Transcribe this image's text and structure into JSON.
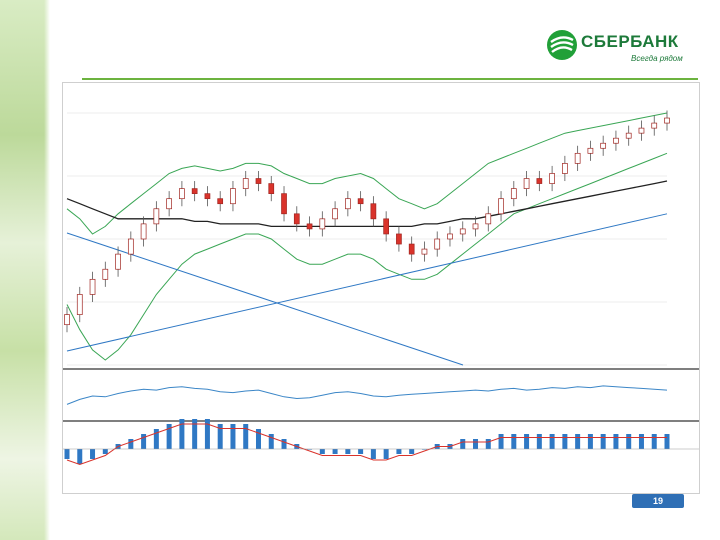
{
  "brand": {
    "name": "СБЕРБАНК",
    "slogan": "Всегда рядом"
  },
  "page_number": "19",
  "chart_data": {
    "type": "line",
    "title": "",
    "xlabel": "",
    "ylabel": "",
    "colors": {
      "bollinger": "#3aa655",
      "moving_average": "#222222",
      "trendline": "#2f78c4",
      "candle_up": "#ffffff",
      "candle_down": "#d9332b",
      "oscillator": "#3b86c7",
      "macd_hist": "#2f78c4",
      "macd_signal": "#d9332b"
    },
    "price": {
      "ylim": [
        0,
        100
      ],
      "close": [
        20,
        28,
        34,
        38,
        44,
        50,
        56,
        62,
        66,
        70,
        68,
        66,
        64,
        70,
        74,
        72,
        68,
        60,
        56,
        54,
        58,
        62,
        66,
        64,
        58,
        52,
        48,
        44,
        46,
        50,
        52,
        54,
        56,
        60,
        66,
        70,
        74,
        72,
        76,
        80,
        84,
        86,
        88,
        90,
        92,
        94,
        96,
        98
      ]
    },
    "bollinger_upper": [
      62,
      58,
      52,
      55,
      60,
      64,
      68,
      72,
      76,
      78,
      79,
      78,
      77,
      78,
      80,
      80,
      79,
      76,
      74,
      72,
      72,
      74,
      75,
      76,
      74,
      70,
      66,
      64,
      62,
      64,
      68,
      72,
      76,
      80,
      82,
      84,
      86,
      88,
      90,
      92,
      93,
      94,
      95,
      96,
      97,
      98,
      99,
      100
    ],
    "bollinger_lower": [
      24,
      14,
      6,
      2,
      6,
      12,
      20,
      28,
      34,
      40,
      44,
      46,
      48,
      50,
      52,
      52,
      50,
      46,
      42,
      40,
      40,
      42,
      44,
      44,
      42,
      38,
      36,
      34,
      34,
      36,
      40,
      44,
      48,
      52,
      56,
      60,
      62,
      64,
      66,
      68,
      70,
      72,
      74,
      76,
      78,
      80,
      82,
      84
    ],
    "moving_average": [
      66,
      64,
      62,
      60,
      58,
      58,
      58,
      58,
      58,
      58,
      57,
      57,
      56,
      56,
      56,
      56,
      55,
      55,
      55,
      55,
      55,
      55,
      55,
      55,
      55,
      55,
      55,
      55,
      56,
      56,
      57,
      58,
      58,
      59,
      60,
      61,
      62,
      63,
      64,
      65,
      66,
      67,
      68,
      69,
      70,
      71,
      72,
      73
    ],
    "oscillator": [
      30,
      42,
      50,
      48,
      56,
      62,
      66,
      64,
      70,
      72,
      68,
      66,
      60,
      58,
      62,
      64,
      56,
      48,
      44,
      46,
      52,
      58,
      60,
      56,
      50,
      48,
      52,
      54,
      56,
      58,
      60,
      62,
      64,
      62,
      66,
      68,
      64,
      66,
      70,
      68,
      72,
      70,
      74,
      72,
      70,
      68,
      66,
      64
    ],
    "macd_hist": [
      -2,
      -3,
      -2,
      -1,
      1,
      2,
      3,
      4,
      5,
      6,
      6,
      6,
      5,
      5,
      5,
      4,
      3,
      2,
      1,
      0,
      -1,
      -1,
      -1,
      -1,
      -2,
      -2,
      -1,
      -1,
      0,
      1,
      1,
      2,
      2,
      2,
      3,
      3,
      3,
      3,
      3,
      3,
      3,
      3,
      3,
      3,
      3,
      3,
      3,
      3
    ]
  }
}
